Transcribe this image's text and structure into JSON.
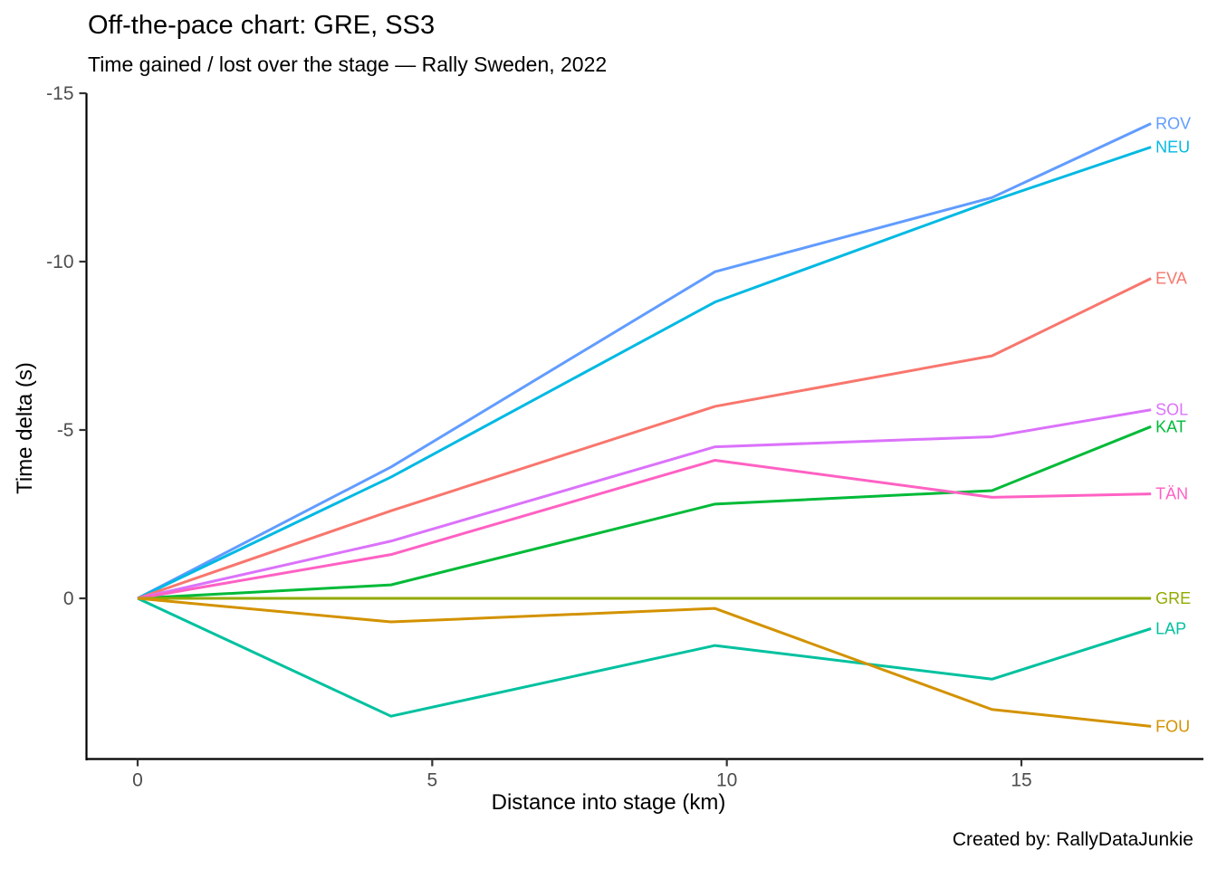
{
  "chart_data": {
    "type": "line",
    "title": "Off-the-pace chart: GRE, SS3",
    "subtitle": "Time gained / lost over the stage — Rally Sweden, 2022",
    "xlabel": "Distance into stage (km)",
    "ylabel": "Time delta (s)",
    "caption": "Created by: RallyDataJunkie",
    "x_km": [
      0,
      4.3,
      9.8,
      14.5,
      17.2
    ],
    "x_ticks": [
      0,
      5,
      10,
      15
    ],
    "y_ticks": [
      0,
      -5,
      -10,
      -15
    ],
    "xlim": [
      0,
      18.1
    ],
    "ylim": [
      4.8,
      -15
    ],
    "y_axis_inverted": true,
    "grid": false,
    "legend_position": "line-end-labels",
    "axis_color": "#000000",
    "tick_label_color": "#4d4d4d",
    "series": [
      {
        "name": "ROV",
        "color": "#619CFF",
        "values": [
          0,
          -3.9,
          -9.7,
          -11.9,
          -14.1
        ]
      },
      {
        "name": "NEU",
        "color": "#00B9E3",
        "values": [
          0,
          -3.6,
          -8.8,
          -11.8,
          -13.4
        ]
      },
      {
        "name": "EVA",
        "color": "#F8766D",
        "values": [
          0,
          -2.6,
          -5.7,
          -7.2,
          -9.5
        ]
      },
      {
        "name": "SOL",
        "color": "#DB72FB",
        "values": [
          0,
          -1.7,
          -4.5,
          -4.8,
          -5.6
        ]
      },
      {
        "name": "KAT",
        "color": "#00BA38",
        "values": [
          0,
          -0.4,
          -2.8,
          -3.2,
          -5.1
        ]
      },
      {
        "name": "TÄN",
        "color": "#FF61C3",
        "values": [
          0,
          -1.3,
          -4.1,
          -3.0,
          -3.1
        ]
      },
      {
        "name": "GRE",
        "color": "#93AA00",
        "values": [
          0,
          0,
          0,
          0,
          0
        ]
      },
      {
        "name": "LAP",
        "color": "#00C19F",
        "values": [
          0,
          3.5,
          1.4,
          2.4,
          0.9
        ]
      },
      {
        "name": "FOU",
        "color": "#D39200",
        "values": [
          0,
          0.7,
          0.3,
          3.3,
          3.8
        ]
      }
    ]
  }
}
